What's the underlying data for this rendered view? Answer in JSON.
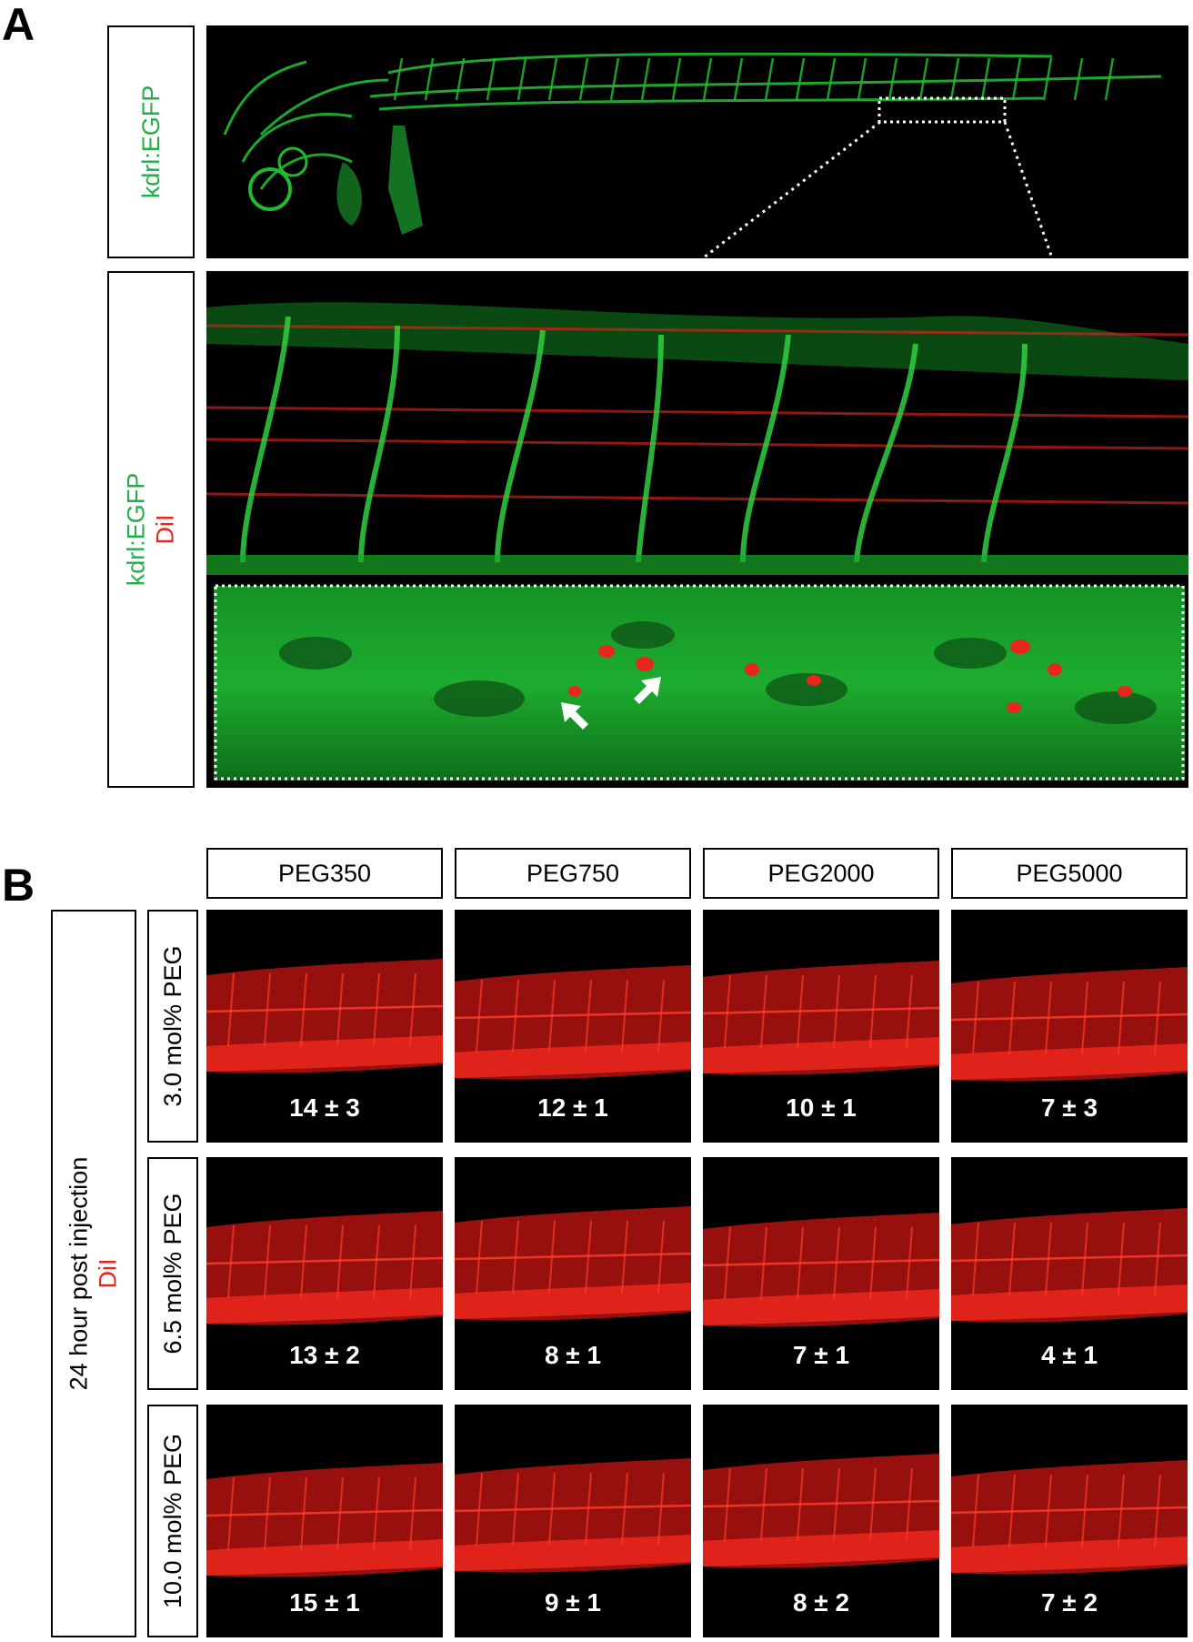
{
  "panel_a": {
    "letter": "A",
    "top_label": "kdrl:EGFP",
    "bottom_label_green": "kdrl:EGFP",
    "bottom_label_red": "DiI"
  },
  "panel_b": {
    "letter": "B",
    "side_label": "24 hour post injection",
    "side_label_stain": "DiI",
    "columns": [
      "PEG350",
      "PEG750",
      "PEG2000",
      "PEG5000"
    ],
    "rows": [
      {
        "label": "3.0 mol% PEG",
        "counts": [
          "14 ± 3",
          "12 ± 1",
          "10 ± 1",
          "7 ± 3"
        ]
      },
      {
        "label": "6.5 mol% PEG",
        "counts": [
          "13 ± 2",
          "8 ± 1",
          "7 ± 1",
          "4 ± 1"
        ]
      },
      {
        "label": "10.0 mol% PEG",
        "counts": [
          "15 ± 1",
          "9 ± 1",
          "8 ± 2",
          "7 ± 2"
        ]
      }
    ]
  },
  "colors": {
    "egfp": "#1fb04a",
    "dii": "#e8261c"
  }
}
